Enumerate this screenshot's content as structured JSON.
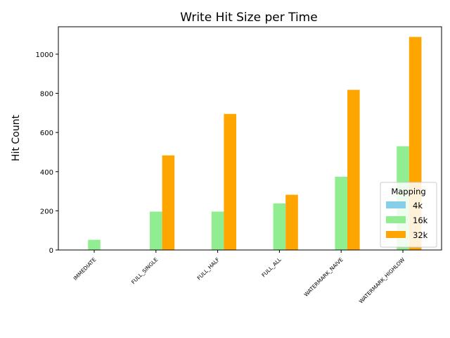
{
  "chart_data": {
    "type": "bar",
    "title": "Write Hit Size per Time",
    "xlabel": "",
    "ylabel": "Hit Count",
    "categories": [
      "IMMEDIATE",
      "FULL_SINGLE",
      "FULL_HALF",
      "FULL_ALL",
      "WATERMARK_NAIVE",
      "WATERMARK_HIGHLOW"
    ],
    "series": [
      {
        "name": "4k",
        "color": "#87ceeb",
        "values": [
          0,
          0,
          0,
          0,
          0,
          0
        ]
      },
      {
        "name": "16k",
        "color": "#90ee90",
        "values": [
          52,
          196,
          196,
          238,
          374,
          530
        ]
      },
      {
        "name": "32k",
        "color": "#ffa500",
        "values": [
          0,
          483,
          695,
          282,
          818,
          1088
        ]
      }
    ],
    "ylim": [
      0,
      1140
    ],
    "yticks": [
      0,
      200,
      400,
      600,
      800,
      1000
    ],
    "grid": false,
    "legend": {
      "title": "Mapping",
      "placement": "lower-right"
    }
  }
}
